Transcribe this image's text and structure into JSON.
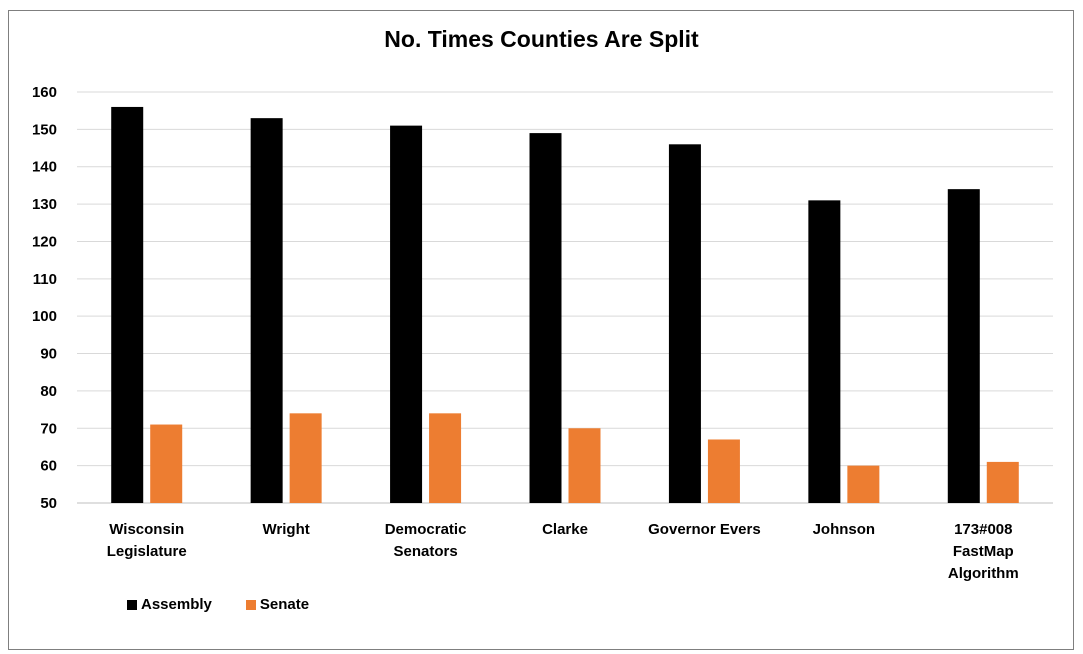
{
  "chart_data": {
    "type": "bar",
    "title": "No. Times Counties Are Split",
    "xlabel": "",
    "ylabel": "",
    "ylim": [
      50,
      160
    ],
    "yticks": [
      50,
      60,
      70,
      80,
      90,
      100,
      110,
      120,
      130,
      140,
      150,
      160
    ],
    "grid": true,
    "legend_position": "bottom-left",
    "categories": [
      [
        "Wisconsin",
        "Legislature"
      ],
      [
        "Wright"
      ],
      [
        "Democratic",
        "Senators"
      ],
      [
        "Clarke"
      ],
      [
        "Governor Evers"
      ],
      [
        "Johnson"
      ],
      [
        "173#008",
        "FastMap",
        "Algorithm"
      ]
    ],
    "series": [
      {
        "name": "Assembly",
        "color": "#000000",
        "values": [
          156,
          153,
          151,
          149,
          146,
          131,
          134
        ]
      },
      {
        "name": "Senate",
        "color": "#ed7d31",
        "values": [
          71,
          74,
          74,
          70,
          67,
          60,
          61
        ]
      }
    ]
  }
}
